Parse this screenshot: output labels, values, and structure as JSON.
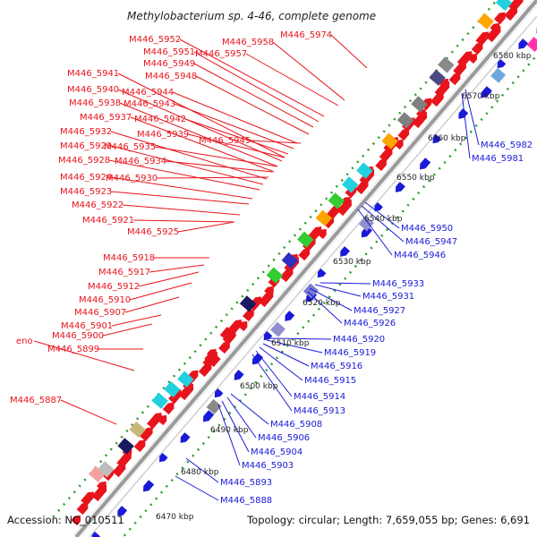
{
  "title": "Methylobacterium sp. 4-46, complete genome",
  "footer": {
    "accession": "Accession: NC_010511",
    "topology": "Topology: circular; Length: 7,659,055 bp; Genes: 6,691"
  },
  "colors": {
    "forward_label": "#e8141c",
    "reverse_label": "#1a1ad8",
    "backbone": "#9a9a9a",
    "cds_forward": "#e8141c",
    "cds_reverse": "#1a1ad8",
    "gc_dots": "#2a9a2a"
  },
  "kbp_ticks": [
    "6470 kbp",
    "6480 kbp",
    "6490 kbp",
    "6500 kbp",
    "6510 kbp",
    "6520 kbp",
    "6530 kbp",
    "6540 kbp",
    "6550 kbp",
    "6560 kbp",
    "6570 kbp",
    "6580 kbp"
  ],
  "forward_genes": [
    "M446_5974",
    "M446_5952",
    "M446_5958",
    "M446_5951",
    "M446_5957",
    "M446_5949",
    "M446_5948",
    "M446_5941",
    "M446_5940",
    "M446_5944",
    "M446_5938",
    "M446_5943",
    "M446_5937",
    "M446_5942",
    "M446_5945",
    "M446_5932",
    "M446_5939",
    "M446_5929",
    "M446_5935",
    "M446_5928",
    "M446_5934",
    "M446_5924",
    "M446_5930",
    "M446_5923",
    "M446_5922",
    "M446_5921",
    "M446_5925",
    "M446_5918",
    "M446_5917",
    "M446_5912",
    "M446_5910",
    "M446_5907",
    "M446_5901",
    "M446_5900",
    "eno",
    "M446_5899",
    "M446_5887"
  ],
  "reverse_genes": [
    "M446_5982",
    "M446_5981",
    "M446_5950",
    "M446_5947",
    "M446_5946",
    "M446_5933",
    "M446_5931",
    "M446_5927",
    "M446_5926",
    "M446_5920",
    "M446_5919",
    "M446_5916",
    "M446_5915",
    "M446_5914",
    "M446_5913",
    "M446_5908",
    "M446_5906",
    "M446_5904",
    "M446_5903",
    "M446_5893",
    "M446_5888"
  ]
}
